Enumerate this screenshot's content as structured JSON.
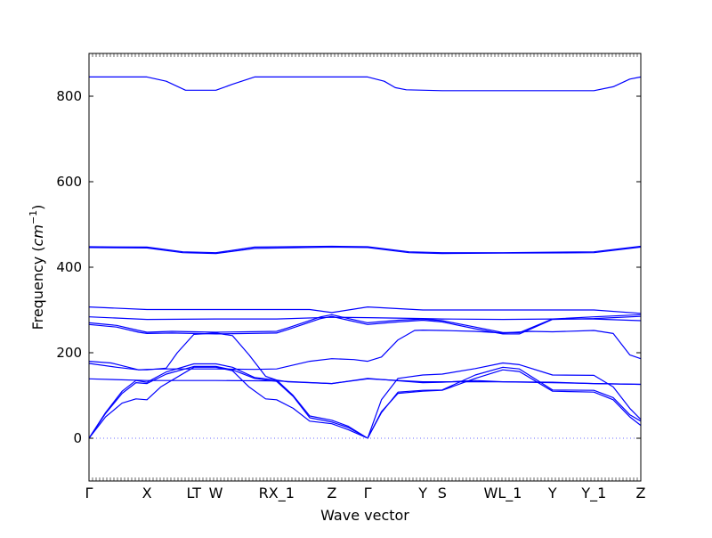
{
  "chart_data": {
    "type": "line",
    "title": "",
    "xlabel": "Wave vector",
    "ylabel": "Frequency",
    "ylabel_unit": "cm",
    "ylabel_unit_exponent": "−1",
    "ylim": [
      -100,
      900
    ],
    "yticks": [
      0,
      200,
      400,
      600,
      800
    ],
    "grid": false,
    "legend": "none",
    "line_color": "#0000ff",
    "zero_line_color": "#6b6bff",
    "xticks": [
      "Γ",
      "X",
      "L",
      "T",
      "W",
      "R",
      "X_1",
      "Z",
      "Γ",
      "Y",
      "S",
      "W",
      "L_1",
      "Y",
      "Y_1",
      "Z"
    ],
    "xtick_labels_display": [
      "Γ",
      "X",
      "LT",
      "W",
      "RX_1",
      "Z",
      "Γ",
      "Y",
      "S",
      "WL_1",
      "Y",
      "Y_1",
      "Z"
    ],
    "x_positions": [
      0,
      0.105,
      0.19,
      0.23,
      0.34,
      0.44,
      0.505,
      0.605,
      0.64,
      0.75,
      0.84,
      0.915,
      1.0
    ],
    "series": [
      {
        "values": [
          [
            0,
            845
          ],
          [
            0.105,
            845
          ],
          [
            0.14,
            835
          ],
          [
            0.175,
            814
          ],
          [
            0.23,
            814
          ],
          [
            0.26,
            828
          ],
          [
            0.3,
            845
          ],
          [
            0.44,
            845
          ],
          [
            0.505,
            845
          ],
          [
            0.535,
            835
          ],
          [
            0.555,
            820
          ],
          [
            0.575,
            815
          ],
          [
            0.64,
            813
          ],
          [
            0.75,
            813
          ],
          [
            0.915,
            813
          ],
          [
            0.95,
            822
          ],
          [
            0.98,
            840
          ],
          [
            1.0,
            845
          ]
        ]
      },
      {
        "values": [
          [
            0,
            448
          ],
          [
            0.105,
            447
          ],
          [
            0.17,
            436
          ],
          [
            0.23,
            434
          ],
          [
            0.3,
            447
          ],
          [
            0.44,
            449
          ],
          [
            0.505,
            448
          ],
          [
            0.58,
            436
          ],
          [
            0.64,
            434
          ],
          [
            0.75,
            434
          ],
          [
            0.915,
            436
          ],
          [
            1.0,
            449
          ]
        ]
      },
      {
        "values": [
          [
            0,
            446
          ],
          [
            0.105,
            445
          ],
          [
            0.17,
            434
          ],
          [
            0.23,
            432
          ],
          [
            0.3,
            444
          ],
          [
            0.44,
            447
          ],
          [
            0.505,
            446
          ],
          [
            0.58,
            434
          ],
          [
            0.64,
            432
          ],
          [
            0.75,
            433
          ],
          [
            0.915,
            434
          ],
          [
            1.0,
            447
          ]
        ]
      },
      {
        "values": [
          [
            0,
            307
          ],
          [
            0.105,
            301
          ],
          [
            0.23,
            301
          ],
          [
            0.34,
            301
          ],
          [
            0.4,
            301
          ],
          [
            0.44,
            294
          ],
          [
            0.505,
            307
          ],
          [
            0.605,
            300
          ],
          [
            0.64,
            300
          ],
          [
            0.75,
            300
          ],
          [
            0.84,
            300
          ],
          [
            0.915,
            300
          ],
          [
            1.0,
            292
          ]
        ]
      },
      {
        "values": [
          [
            0,
            284
          ],
          [
            0.105,
            278
          ],
          [
            0.23,
            279
          ],
          [
            0.34,
            279
          ],
          [
            0.44,
            283
          ],
          [
            0.505,
            282
          ],
          [
            0.605,
            280
          ],
          [
            0.64,
            279
          ],
          [
            0.75,
            278
          ],
          [
            0.84,
            279
          ],
          [
            0.915,
            279
          ],
          [
            1.0,
            275
          ]
        ]
      },
      {
        "values": [
          [
            0,
            270
          ],
          [
            0.05,
            264
          ],
          [
            0.09,
            252
          ],
          [
            0.105,
            248
          ],
          [
            0.15,
            250
          ],
          [
            0.23,
            248
          ],
          [
            0.34,
            250
          ],
          [
            0.36,
            258
          ],
          [
            0.42,
            284
          ],
          [
            0.44,
            289
          ],
          [
            0.47,
            280
          ],
          [
            0.505,
            270
          ],
          [
            0.56,
            276
          ],
          [
            0.605,
            279
          ],
          [
            0.64,
            275
          ],
          [
            0.7,
            260
          ],
          [
            0.75,
            247
          ],
          [
            0.78,
            247
          ],
          [
            0.84,
            279
          ],
          [
            0.915,
            284
          ],
          [
            1.0,
            289
          ]
        ]
      },
      {
        "values": [
          [
            0,
            266
          ],
          [
            0.05,
            260
          ],
          [
            0.09,
            248
          ],
          [
            0.105,
            245
          ],
          [
            0.15,
            246
          ],
          [
            0.23,
            244
          ],
          [
            0.34,
            246
          ],
          [
            0.36,
            254
          ],
          [
            0.42,
            280
          ],
          [
            0.44,
            285
          ],
          [
            0.47,
            276
          ],
          [
            0.505,
            266
          ],
          [
            0.56,
            272
          ],
          [
            0.605,
            276
          ],
          [
            0.64,
            272
          ],
          [
            0.7,
            256
          ],
          [
            0.75,
            244
          ],
          [
            0.78,
            244
          ],
          [
            0.84,
            278
          ],
          [
            0.915,
            280
          ],
          [
            1.0,
            285
          ]
        ]
      },
      {
        "values": [
          [
            0,
            180
          ],
          [
            0.04,
            176
          ],
          [
            0.09,
            160
          ],
          [
            0.105,
            160
          ],
          [
            0.14,
            164
          ],
          [
            0.16,
            200
          ],
          [
            0.19,
            243
          ],
          [
            0.23,
            246
          ],
          [
            0.26,
            240
          ],
          [
            0.29,
            195
          ],
          [
            0.32,
            145
          ],
          [
            0.34,
            136
          ],
          [
            0.36,
            132
          ],
          [
            0.4,
            130
          ],
          [
            0.44,
            128
          ],
          [
            0.505,
            140
          ],
          [
            0.605,
            130
          ],
          [
            0.64,
            131
          ],
          [
            0.7,
            135
          ],
          [
            0.75,
            132
          ],
          [
            0.84,
            130
          ],
          [
            0.915,
            128
          ],
          [
            1.0,
            126
          ]
        ]
      },
      {
        "values": [
          [
            0,
            175
          ],
          [
            0.05,
            166
          ],
          [
            0.09,
            160
          ],
          [
            0.105,
            161
          ],
          [
            0.14,
            162
          ],
          [
            0.19,
            162
          ],
          [
            0.23,
            162
          ],
          [
            0.3,
            161
          ],
          [
            0.34,
            162
          ],
          [
            0.4,
            180
          ],
          [
            0.44,
            186
          ],
          [
            0.48,
            184
          ],
          [
            0.505,
            180
          ],
          [
            0.53,
            190
          ],
          [
            0.56,
            230
          ],
          [
            0.59,
            252
          ],
          [
            0.605,
            253
          ],
          [
            0.64,
            252
          ],
          [
            0.7,
            250
          ],
          [
            0.75,
            246
          ],
          [
            0.8,
            250
          ],
          [
            0.84,
            249
          ],
          [
            0.915,
            252
          ],
          [
            0.95,
            245
          ],
          [
            0.98,
            195
          ],
          [
            1.0,
            186
          ]
        ]
      },
      {
        "values": [
          [
            0,
            139
          ],
          [
            0.105,
            135
          ],
          [
            0.19,
            135
          ],
          [
            0.23,
            135
          ],
          [
            0.34,
            134
          ],
          [
            0.44,
            128
          ],
          [
            0.505,
            139
          ],
          [
            0.605,
            132
          ],
          [
            0.64,
            132
          ],
          [
            0.75,
            132
          ],
          [
            0.84,
            131
          ],
          [
            0.915,
            128
          ],
          [
            1.0,
            126
          ]
        ]
      },
      {
        "values": [
          [
            0,
            0
          ],
          [
            0.03,
            60
          ],
          [
            0.06,
            110
          ],
          [
            0.085,
            135
          ],
          [
            0.105,
            131
          ],
          [
            0.14,
            155
          ],
          [
            0.19,
            174
          ],
          [
            0.23,
            174
          ],
          [
            0.26,
            166
          ],
          [
            0.3,
            142
          ],
          [
            0.34,
            136
          ],
          [
            0.37,
            100
          ],
          [
            0.4,
            52
          ],
          [
            0.44,
            42
          ],
          [
            0.47,
            28
          ],
          [
            0.505,
            0
          ],
          [
            0.53,
            90
          ],
          [
            0.56,
            140
          ],
          [
            0.605,
            148
          ],
          [
            0.64,
            150
          ],
          [
            0.7,
            163
          ],
          [
            0.75,
            176
          ],
          [
            0.78,
            172
          ],
          [
            0.84,
            148
          ],
          [
            0.915,
            147
          ],
          [
            0.95,
            120
          ],
          [
            0.98,
            70
          ],
          [
            1.0,
            44
          ]
        ]
      },
      {
        "values": [
          [
            0,
            0
          ],
          [
            0.03,
            58
          ],
          [
            0.06,
            105
          ],
          [
            0.085,
            130
          ],
          [
            0.105,
            128
          ],
          [
            0.14,
            150
          ],
          [
            0.19,
            168
          ],
          [
            0.23,
            168
          ],
          [
            0.26,
            160
          ],
          [
            0.3,
            140
          ],
          [
            0.34,
            133
          ],
          [
            0.37,
            98
          ],
          [
            0.4,
            48
          ],
          [
            0.44,
            38
          ],
          [
            0.47,
            25
          ],
          [
            0.505,
            0
          ],
          [
            0.53,
            60
          ],
          [
            0.56,
            108
          ],
          [
            0.605,
            112
          ],
          [
            0.64,
            113
          ],
          [
            0.7,
            148
          ],
          [
            0.75,
            166
          ],
          [
            0.78,
            162
          ],
          [
            0.84,
            113
          ],
          [
            0.915,
            112
          ],
          [
            0.95,
            95
          ],
          [
            0.98,
            55
          ],
          [
            1.0,
            40
          ]
        ]
      },
      {
        "values": [
          [
            0,
            0
          ],
          [
            0.03,
            50
          ],
          [
            0.06,
            82
          ],
          [
            0.085,
            92
          ],
          [
            0.105,
            90
          ],
          [
            0.13,
            120
          ],
          [
            0.19,
            166
          ],
          [
            0.23,
            166
          ],
          [
            0.26,
            158
          ],
          [
            0.29,
            120
          ],
          [
            0.32,
            92
          ],
          [
            0.34,
            90
          ],
          [
            0.37,
            70
          ],
          [
            0.4,
            40
          ],
          [
            0.44,
            34
          ],
          [
            0.47,
            20
          ],
          [
            0.505,
            0
          ],
          [
            0.53,
            62
          ],
          [
            0.56,
            105
          ],
          [
            0.605,
            110
          ],
          [
            0.64,
            112
          ],
          [
            0.7,
            140
          ],
          [
            0.75,
            160
          ],
          [
            0.78,
            156
          ],
          [
            0.84,
            110
          ],
          [
            0.915,
            108
          ],
          [
            0.95,
            90
          ],
          [
            0.98,
            50
          ],
          [
            1.0,
            30
          ]
        ]
      }
    ]
  }
}
